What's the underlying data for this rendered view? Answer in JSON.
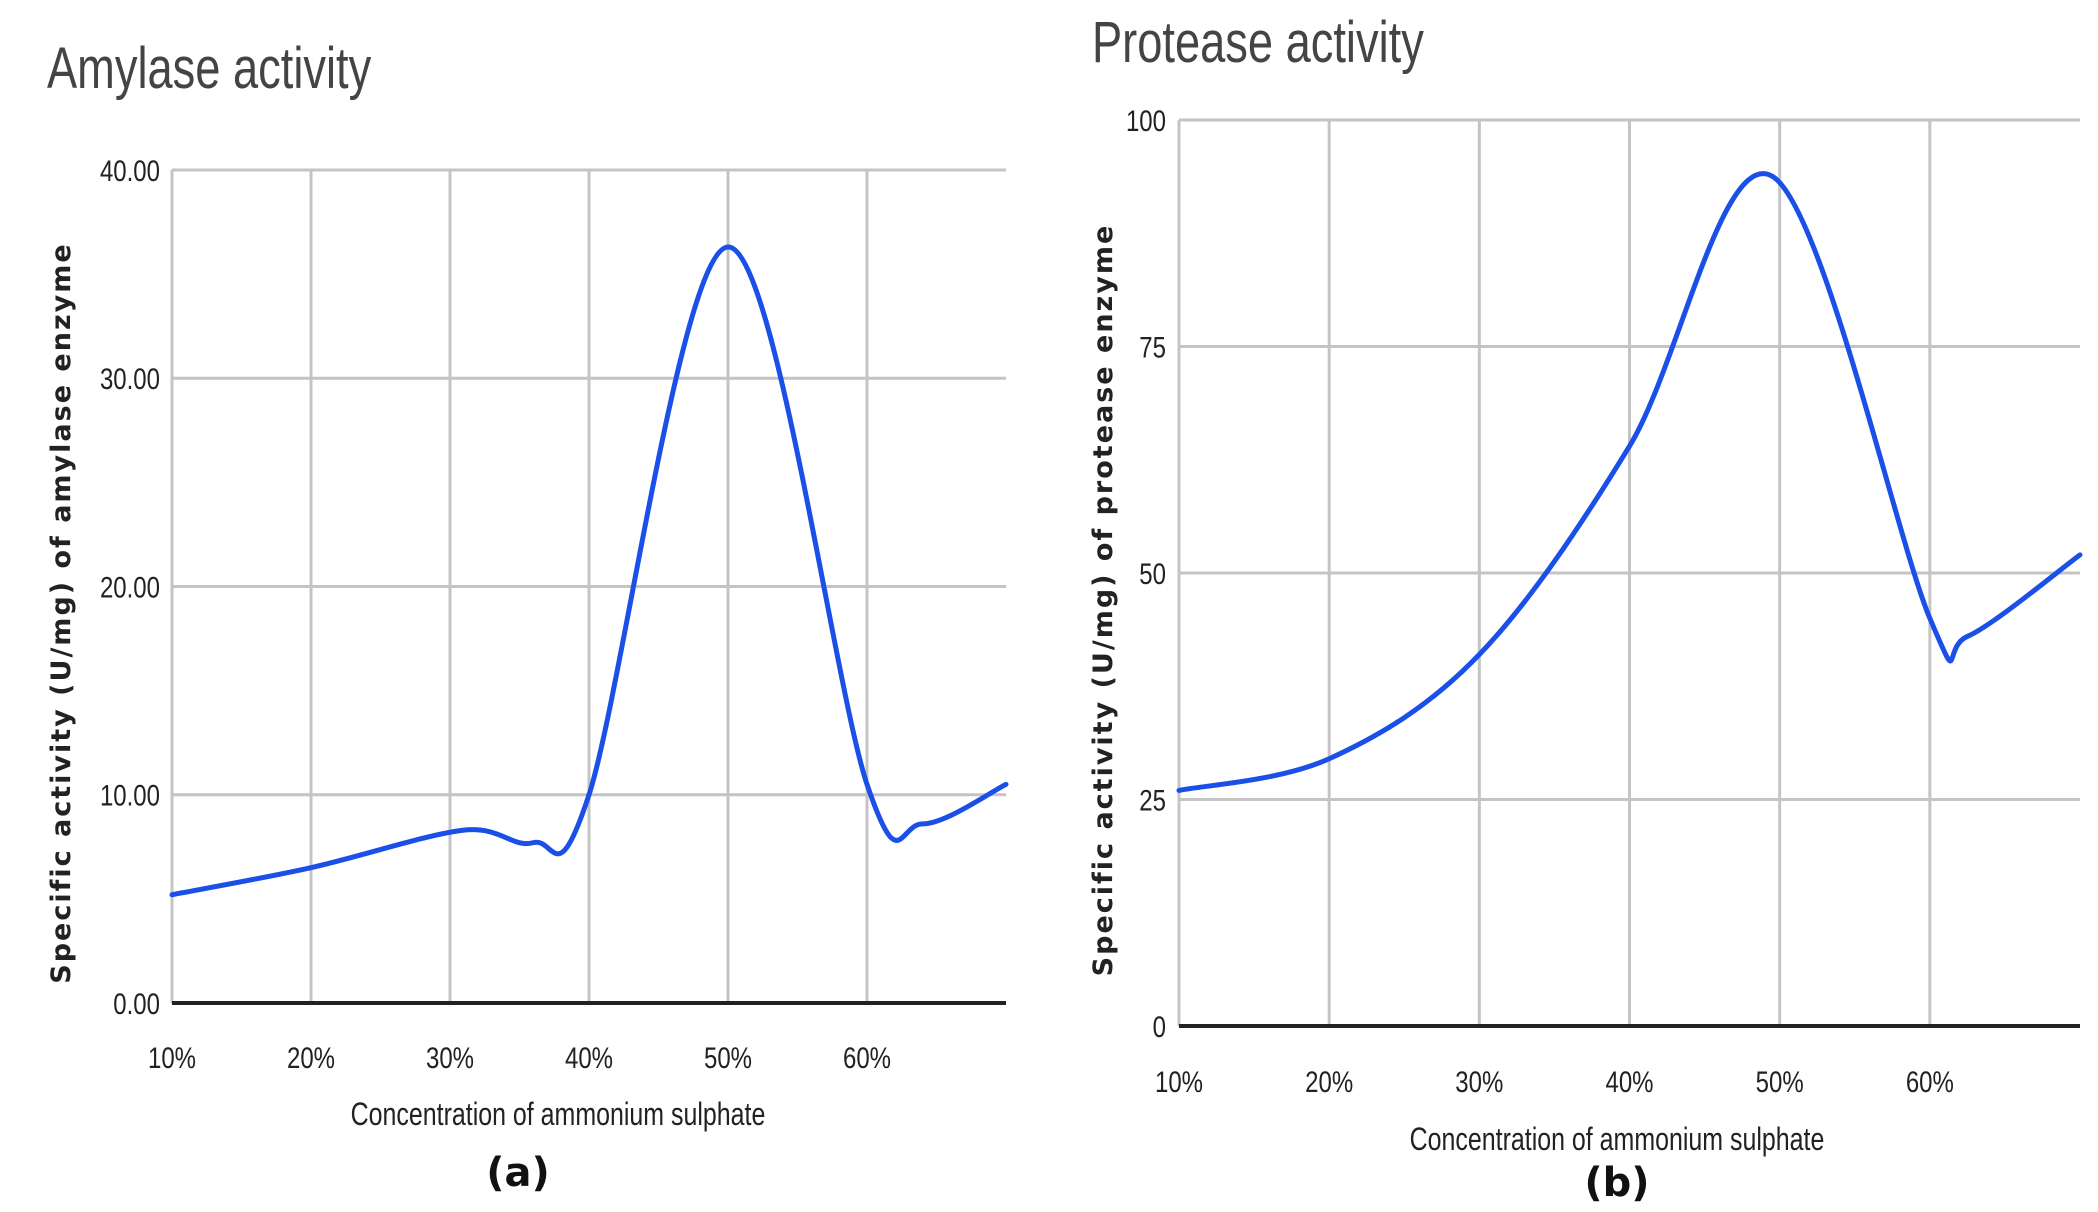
{
  "chart_data": [
    {
      "type": "line",
      "title": "Amylase activity",
      "xlabel": "Concentration of ammonium sulphate",
      "ylabel": "Specific activity (U/mg) of amylase enzyme",
      "panel_label": "(a)",
      "x_ticks": [
        "10%",
        "20%",
        "30%",
        "40%",
        "50%",
        "60%"
      ],
      "y_ticks": [
        "0.00",
        "10.00",
        "20.00",
        "30.00",
        "40.00"
      ],
      "xlim": [
        10,
        70
      ],
      "ylim": [
        0,
        40
      ],
      "grid": true,
      "color": "#1a4fe8",
      "series": [
        {
          "name": "Amylase",
          "x": [
            10,
            20,
            31,
            36,
            40,
            50,
            60,
            64,
            70
          ],
          "y": [
            5.2,
            6.5,
            8.3,
            7.7,
            10,
            36.3,
            10.5,
            8.6,
            10.5
          ]
        }
      ]
    },
    {
      "type": "line",
      "title": "Protease activity",
      "xlabel": "Concentration of ammonium sulphate",
      "ylabel": "Specific activity (U/mg) of protease enzyme",
      "panel_label": "(b)",
      "x_ticks": [
        "10%",
        "20%",
        "30%",
        "40%",
        "50%",
        "60%"
      ],
      "y_ticks": [
        "0",
        "25",
        "50",
        "75",
        "100"
      ],
      "xlim": [
        10,
        70
      ],
      "ylim": [
        0,
        100
      ],
      "grid": true,
      "color": "#1a4fe8",
      "series": [
        {
          "name": "Protease",
          "x": [
            10,
            20,
            30,
            40,
            49.5,
            60,
            62.5,
            70
          ],
          "y": [
            26,
            29.5,
            41,
            64,
            93.8,
            45,
            43,
            52
          ]
        }
      ]
    }
  ]
}
